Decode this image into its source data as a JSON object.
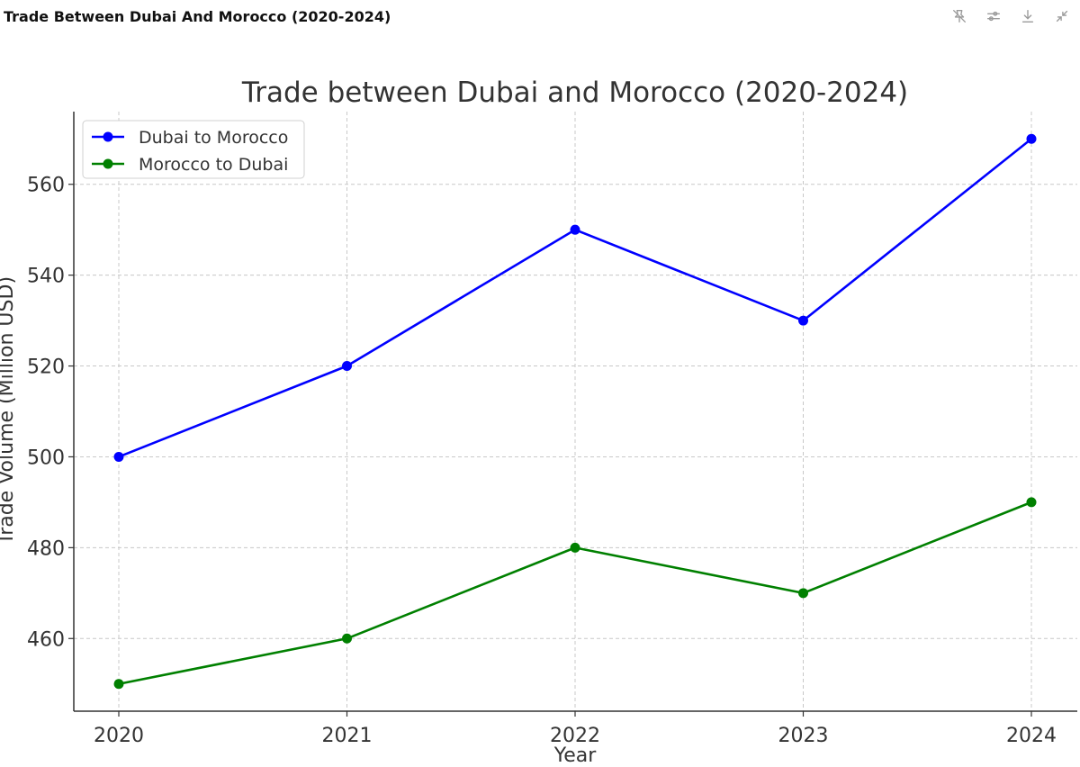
{
  "window": {
    "title": "Trade Between Dubai And Morocco (2020-2024)"
  },
  "toolbar": {
    "buttons": [
      {
        "name": "pin-off-icon",
        "label": ""
      },
      {
        "name": "sliders-icon",
        "label": ""
      },
      {
        "name": "download-icon",
        "label": ""
      },
      {
        "name": "collapse-icon",
        "label": ""
      }
    ]
  },
  "chart_data": {
    "type": "line",
    "title": "Trade between Dubai and Morocco (2020-2024)",
    "xlabel": "Year",
    "ylabel": "Trade Volume (Million USD)",
    "categories": [
      "2020",
      "2021",
      "2022",
      "2023",
      "2024"
    ],
    "yticks": [
      460,
      480,
      500,
      520,
      540,
      560
    ],
    "ylim": [
      444,
      576
    ],
    "grid": true,
    "legend_position": "top-left",
    "series": [
      {
        "name": "Dubai to Morocco",
        "color": "#0000ff",
        "values": [
          500,
          520,
          550,
          530,
          570
        ]
      },
      {
        "name": "Morocco to Dubai",
        "color": "#008000",
        "values": [
          450,
          460,
          480,
          470,
          490
        ]
      }
    ]
  }
}
